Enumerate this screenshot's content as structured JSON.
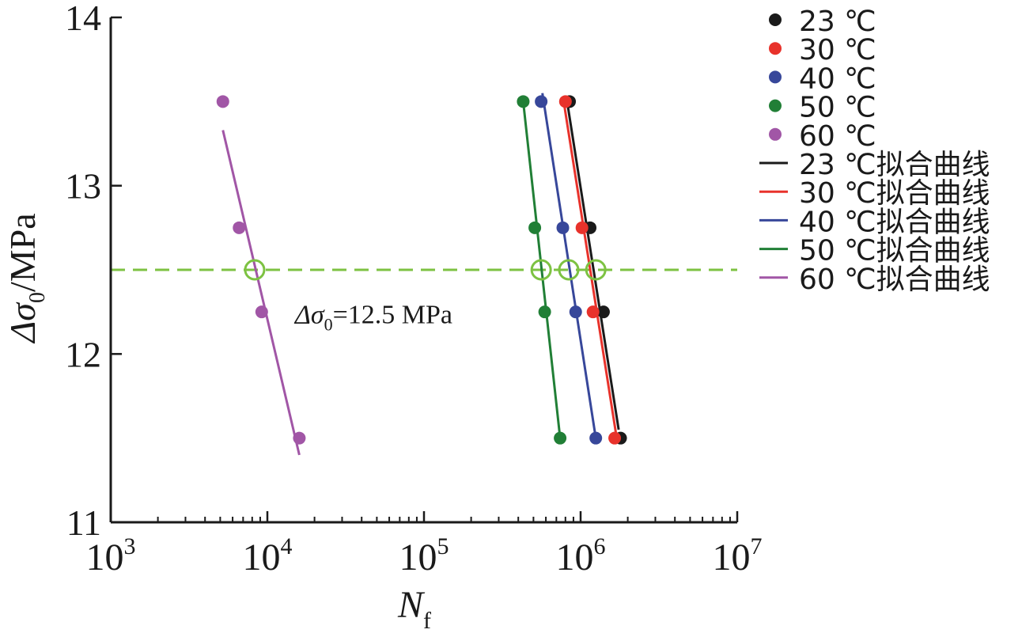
{
  "chart_data": {
    "type": "scatter",
    "x_scale": "log",
    "xlim": [
      1000,
      10000000
    ],
    "ylim": [
      11,
      14
    ],
    "x_ticks": [
      {
        "value": 1000,
        "base": "10",
        "exp": "3"
      },
      {
        "value": 10000,
        "base": "10",
        "exp": "4"
      },
      {
        "value": 100000,
        "base": "10",
        "exp": "5"
      },
      {
        "value": 1000000,
        "base": "10",
        "exp": "6"
      },
      {
        "value": 10000000,
        "base": "10",
        "exp": "7"
      }
    ],
    "y_ticks": [
      {
        "value": 11,
        "label": "11"
      },
      {
        "value": 12,
        "label": "12"
      },
      {
        "value": 13,
        "label": "13"
      },
      {
        "value": 14,
        "label": "14"
      }
    ],
    "xlabel": {
      "main": "N",
      "sub": "f"
    },
    "ylabel": {
      "pre": "Δσ",
      "sub": "0",
      "post": "/MPa"
    },
    "reference_line": {
      "y": 12.5,
      "color": "#7dc242",
      "label_pre": "Δσ",
      "label_sub": "0",
      "label_post": "=12.5 MPa",
      "label_x": 15000,
      "label_y": 12.22,
      "intersections": [
        8300,
        560000,
        840000,
        1250000
      ]
    },
    "series": [
      {
        "name": "23 ℃",
        "fit_name": "23 ℃拟合曲线",
        "color": "#1a1a1a",
        "points": [
          [
            850000,
            13.5
          ],
          [
            1150000,
            12.75
          ],
          [
            1400000,
            12.25
          ],
          [
            1800000,
            11.5
          ]
        ],
        "fit": [
          [
            820000,
            13.5
          ],
          [
            1750000,
            11.55
          ]
        ]
      },
      {
        "name": "30 ℃",
        "fit_name": "30 ℃拟合曲线",
        "color": "#e8322b",
        "points": [
          [
            800000,
            13.5
          ],
          [
            1020000,
            12.75
          ],
          [
            1200000,
            12.25
          ],
          [
            1650000,
            11.5
          ]
        ],
        "fit": [
          [
            780000,
            13.5
          ],
          [
            1700000,
            11.5
          ]
        ]
      },
      {
        "name": "40 ℃",
        "fit_name": "40 ℃拟合曲线",
        "color": "#37479a",
        "points": [
          [
            560000,
            13.5
          ],
          [
            770000,
            12.75
          ],
          [
            930000,
            12.25
          ],
          [
            1250000,
            11.5
          ]
        ],
        "fit": [
          [
            570000,
            13.55
          ],
          [
            1250000,
            11.5
          ]
        ]
      },
      {
        "name": "50 ℃",
        "fit_name": "50 ℃拟合曲线",
        "color": "#217f36",
        "points": [
          [
            430000,
            13.5
          ],
          [
            510000,
            12.75
          ],
          [
            590000,
            12.25
          ],
          [
            740000,
            11.5
          ]
        ],
        "fit": [
          [
            430000,
            13.5
          ],
          [
            740000,
            11.5
          ]
        ]
      },
      {
        "name": "60 ℃",
        "fit_name": "60 ℃拟合曲线",
        "color": "#a156a6",
        "points": [
          [
            5200,
            13.5
          ],
          [
            6600,
            12.75
          ],
          [
            9200,
            12.25
          ],
          [
            16000,
            11.5
          ]
        ],
        "fit": [
          [
            5200,
            13.33
          ],
          [
            16000,
            11.4
          ]
        ]
      }
    ],
    "legend_position": "right"
  }
}
